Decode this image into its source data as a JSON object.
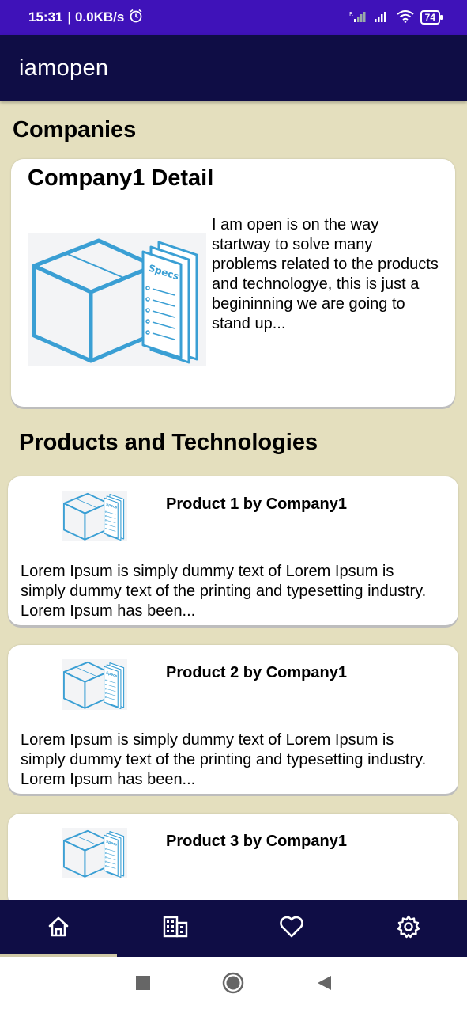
{
  "status_bar": {
    "time": "15:31",
    "speed": "| 0.0KB/s",
    "battery": "74",
    "icons": [
      "alarm-icon",
      "signal-roaming-icon",
      "signal-icon",
      "wifi-icon",
      "battery-icon"
    ]
  },
  "app_bar": {
    "title": "iamopen"
  },
  "companies": {
    "title": "Companies",
    "items": [
      {
        "name": "Company1 Detail",
        "description": "I am open is on the way startway to solve many problems related to the products and technologye, this is just a begininning we are going to stand up...",
        "image_icon": "specs-box-image",
        "image_label": "Specs"
      }
    ]
  },
  "products": {
    "title": "Products and Technologies",
    "items": [
      {
        "name": "Product 1 by Company1",
        "description": "Lorem Ipsum is simply dummy text of Lorem Ipsum is simply dummy text of the printing and typesetting industry. Lorem Ipsum has been...",
        "image_label": "Specs"
      },
      {
        "name": "Product 2 by Company1",
        "description": "Lorem Ipsum is simply dummy text of Lorem Ipsum is simply dummy text of the printing and typesetting industry. Lorem Ipsum has been...",
        "image_label": "Specs"
      },
      {
        "name": "Product 3 by Company1",
        "image_label": "Specs"
      }
    ]
  },
  "bottom_nav": {
    "items": [
      {
        "icon": "home-icon",
        "active": true
      },
      {
        "icon": "building-icon",
        "active": false
      },
      {
        "icon": "heart-icon",
        "active": false
      },
      {
        "icon": "gear-icon",
        "active": false
      }
    ]
  },
  "system_nav": {
    "icons": [
      "recents-square-icon",
      "home-circle-icon",
      "back-triangle-icon"
    ]
  },
  "colors": {
    "status_bar": "#3f12b9",
    "app_bar": "#0f0d45",
    "background": "#e4dfbe",
    "card": "#ffffff",
    "image_accent": "#3a9fd4"
  }
}
